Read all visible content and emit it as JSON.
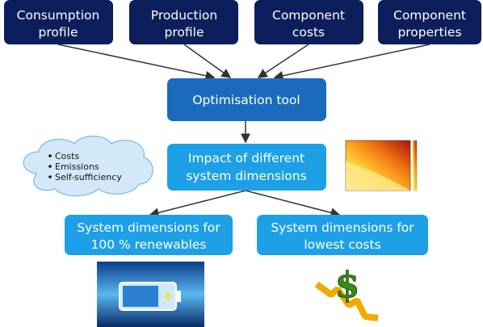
{
  "nodes": [
    {
      "lines": [
        "Consumption",
        "profile"
      ]
    },
    {
      "lines": [
        "Production",
        "profile"
      ]
    },
    {
      "lines": [
        "Component",
        "costs"
      ]
    },
    {
      "lines": [
        "Component",
        "properties"
      ]
    },
    {
      "lines": [
        "Optimisation tool"
      ]
    },
    {
      "lines": [
        "Impact of different",
        "system dimensions"
      ]
    },
    {
      "lines": [
        "System dimensions for",
        "100 % renewables"
      ]
    },
    {
      "lines": [
        "System dimensions for",
        "lowest costs"
      ]
    }
  ],
  "cloud": {
    "items": [
      "Costs",
      "Emissions",
      "Self-sufficiency"
    ]
  }
}
